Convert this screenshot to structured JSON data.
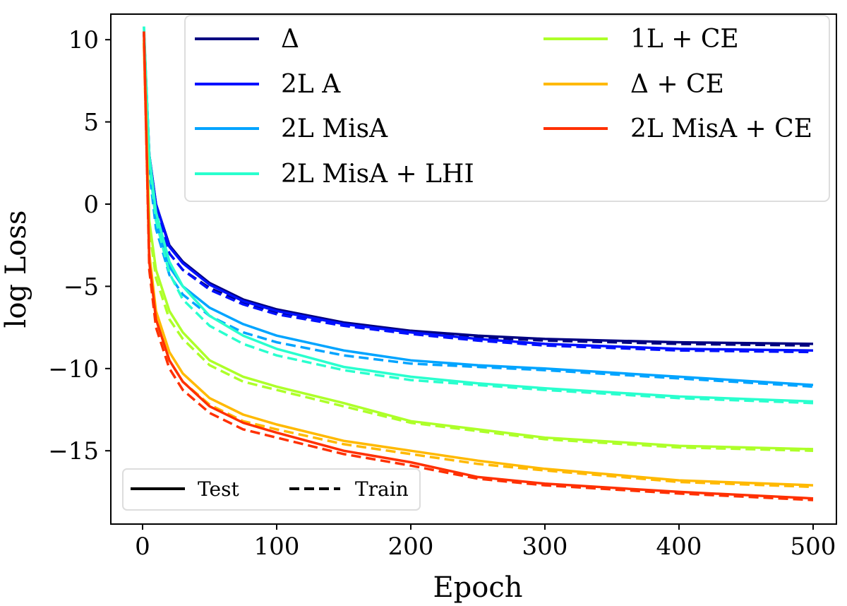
{
  "chart_data": {
    "type": "line",
    "title": "",
    "xlabel": "Epoch",
    "ylabel": "log Loss",
    "xlim": [
      -22,
      522
    ],
    "ylim": [
      -19.3,
      12.5
    ],
    "xticks": [
      0,
      100,
      200,
      300,
      400,
      500
    ],
    "yticks": [
      10,
      5,
      0,
      -5,
      -10,
      -15
    ],
    "ytick_labels": [
      "10",
      "5",
      "0",
      "−5",
      "−10",
      "−15"
    ],
    "grid": false,
    "x": [
      1,
      5,
      10,
      20,
      30,
      50,
      75,
      100,
      150,
      200,
      250,
      300,
      400,
      500
    ],
    "series": [
      {
        "name": "Δ",
        "color": "#000080",
        "test": [
          10.5,
          3,
          0,
          -2.5,
          -3.5,
          -4.8,
          -5.8,
          -6.4,
          -7.2,
          -7.7,
          -8.0,
          -8.2,
          -8.4,
          -8.5
        ],
        "train": [
          10.5,
          2.5,
          -0.5,
          -3,
          -4,
          -5.1,
          -6,
          -6.6,
          -7.3,
          -7.8,
          -8.1,
          -8.3,
          -8.5,
          -8.6
        ]
      },
      {
        "name": "2L A",
        "color": "#0010ff",
        "test": [
          10.5,
          3,
          0,
          -2.6,
          -3.6,
          -4.9,
          -5.9,
          -6.5,
          -7.3,
          -7.8,
          -8.2,
          -8.5,
          -8.8,
          -8.9
        ],
        "train": [
          10.5,
          2.5,
          -0.5,
          -3,
          -4,
          -5.2,
          -6.1,
          -6.7,
          -7.4,
          -7.9,
          -8.3,
          -8.6,
          -8.9,
          -9.0
        ]
      },
      {
        "name": "2L MisA",
        "color": "#00a4ff",
        "test": [
          10.5,
          2.5,
          -1,
          -3.8,
          -5,
          -6.3,
          -7.3,
          -8,
          -8.9,
          -9.5,
          -9.8,
          -10,
          -10.5,
          -11
        ],
        "train": [
          10.5,
          2,
          -1.5,
          -4.3,
          -5.5,
          -6.8,
          -7.8,
          -8.4,
          -9.2,
          -9.7,
          -9.9,
          -10.1,
          -10.6,
          -11.1
        ]
      },
      {
        "name": "2L MisA + LHI",
        "color": "#29ffce",
        "test": [
          10.8,
          3,
          -0.5,
          -3.5,
          -5,
          -6.8,
          -8,
          -8.8,
          -9.9,
          -10.5,
          -10.9,
          -11.2,
          -11.7,
          -12
        ],
        "train": [
          10.8,
          2.5,
          -1,
          -4.2,
          -5.8,
          -7.4,
          -8.5,
          -9.2,
          -10.1,
          -10.7,
          -11,
          -11.3,
          -11.8,
          -12.1
        ]
      },
      {
        "name": "1L + CE",
        "color": "#adff29",
        "test": [
          10,
          -1,
          -4,
          -6.5,
          -7.8,
          -9.5,
          -10.5,
          -11.1,
          -12.1,
          -13.2,
          -13.7,
          -14.2,
          -14.7,
          -14.9
        ],
        "train": [
          10,
          -1.5,
          -4.5,
          -7,
          -8.2,
          -9.8,
          -10.8,
          -11.3,
          -12.3,
          -13.3,
          -13.8,
          -14.3,
          -14.8,
          -15
        ]
      },
      {
        "name": "Δ + CE",
        "color": "#ffb900",
        "test": [
          9.8,
          -3,
          -6.5,
          -9,
          -10.3,
          -11.8,
          -12.8,
          -13.4,
          -14.4,
          -15,
          -15.6,
          -16.1,
          -16.8,
          -17.1
        ],
        "train": [
          9.8,
          -3.5,
          -7,
          -9.5,
          -10.8,
          -12.2,
          -13.2,
          -13.7,
          -14.6,
          -15.2,
          -15.8,
          -16.2,
          -16.9,
          -17.2
        ]
      },
      {
        "name": "2L MisA + CE",
        "color": "#ff3000",
        "test": [
          10.5,
          -3.5,
          -7,
          -9.5,
          -10.8,
          -12.3,
          -13.3,
          -13.9,
          -15,
          -15.7,
          -16.6,
          -17,
          -17.5,
          -17.9
        ],
        "train": [
          10.5,
          -4,
          -7.5,
          -10,
          -11.3,
          -12.7,
          -13.7,
          -14.2,
          -15.2,
          -15.9,
          -16.7,
          -17.1,
          -17.6,
          -18
        ]
      }
    ],
    "style_legend": {
      "test_label": "Test",
      "train_label": "Train",
      "placement": "lower-left"
    },
    "legend_placement": "top-right"
  }
}
